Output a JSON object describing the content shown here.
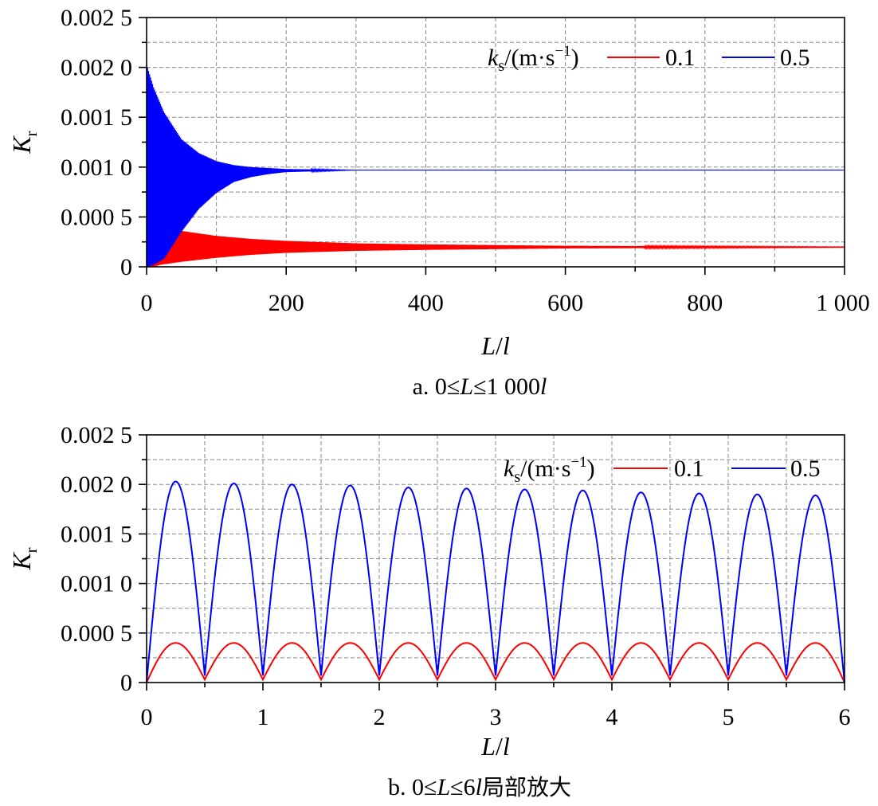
{
  "chart_data": [
    {
      "type": "line",
      "panel_caption": "a. 0≤L≤1 000l",
      "caption_parts": {
        "prefix": "a. 0≤",
        "var1": "L",
        "mid": "≤1 000",
        "var2": "l",
        "suffix": ""
      },
      "xlabel": {
        "var": "L",
        "sep": "/",
        "var2": "l"
      },
      "ylabel": {
        "base": "K",
        "sub": "r"
      },
      "xlim": [
        0,
        1000
      ],
      "ylim": [
        0,
        0.0025
      ],
      "xticks": [
        0,
        200,
        400,
        600,
        800,
        1000
      ],
      "xtick_labels": [
        "0",
        "200",
        "400",
        "600",
        "800",
        "1 000"
      ],
      "yticks": [
        0,
        0.0005,
        0.001,
        0.0015,
        0.002,
        0.0025
      ],
      "ytick_labels": [
        "0",
        "0.000 5",
        "0.001 0",
        "0.001 5",
        "0.002 0",
        "0.002 5"
      ],
      "grid": true,
      "legend": {
        "position": "top-right",
        "title_parts": {
          "base": "k",
          "sub": "s",
          "unit": "/(m·s",
          "sup": "−1",
          "close": ")"
        },
        "entries": [
          "0.1",
          "0.5"
        ]
      },
      "series": [
        {
          "name": "0.1",
          "color": "#ff0000",
          "description": "rapidly oscillating between 0 and an envelope; envelope rises to ~0.0004 near L/l≈30 then decays toward a steady value ~0.0002",
          "envelope_x": [
            0,
            5,
            10,
            20,
            30,
            50,
            100,
            150,
            200,
            300,
            400,
            600,
            800,
            1000
          ],
          "envelope_upper": [
            0,
            8e-05,
            0.00025,
            0.00036,
            0.00038,
            0.00036,
            0.00031,
            0.00028,
            0.00026,
            0.000235,
            0.000225,
            0.00021,
            0.000205,
            0.0002
          ],
          "envelope_lower": [
            0,
            0,
            0,
            2e-05,
            3e-05,
            5e-05,
            9e-05,
            0.00012,
            0.00014,
            0.00016,
            0.00017,
            0.000185,
            0.00019,
            0.000195
          ]
        },
        {
          "name": "0.5",
          "color": "#0000ff",
          "description": "rapidly oscillating; envelope starts ~0.00203 at L/l=0 and decays toward a steady value ~0.00097",
          "envelope_x": [
            0,
            10,
            25,
            50,
            75,
            100,
            125,
            150,
            175,
            200,
            250,
            300,
            1000
          ],
          "envelope_upper": [
            0.00203,
            0.0018,
            0.00155,
            0.00128,
            0.00114,
            0.00106,
            0.00102,
            0.001,
            0.00099,
            0.00098,
            0.000975,
            0.00097,
            0.00097
          ],
          "envelope_lower": [
            0,
            2e-05,
            8e-05,
            0.00035,
            0.00058,
            0.00074,
            0.00085,
            0.0009,
            0.00093,
            0.00095,
            0.00096,
            0.00097,
            0.00097
          ]
        }
      ]
    },
    {
      "type": "line",
      "panel_caption": "b. 0≤L≤6l局部放大",
      "caption_parts": {
        "prefix": "b. 0≤",
        "var1": "L",
        "mid": "≤6",
        "var2": "l",
        "suffix": "局部放大"
      },
      "xlabel": {
        "var": "L",
        "sep": "/",
        "var2": "l"
      },
      "ylabel": {
        "base": "K",
        "sub": "r"
      },
      "xlim": [
        0,
        6
      ],
      "ylim": [
        0,
        0.0025
      ],
      "xticks": [
        0,
        1,
        2,
        3,
        4,
        5,
        6
      ],
      "xtick_labels": [
        "0",
        "1",
        "2",
        "3",
        "4",
        "5",
        "6"
      ],
      "yticks": [
        0,
        0.0005,
        0.001,
        0.0015,
        0.002,
        0.0025
      ],
      "ytick_labels": [
        "0",
        "0.000 5",
        "0.001 0",
        "0.001 5",
        "0.002 0",
        "0.002 5"
      ],
      "grid": true,
      "legend": {
        "position": "top-right",
        "title_parts": {
          "base": "k",
          "sub": "s",
          "unit": "/(m·s",
          "sup": "−1",
          "close": ")"
        },
        "entries": [
          "0.1",
          "0.5"
        ]
      },
      "series": [
        {
          "name": "0.1",
          "color": "#ff0000",
          "description": "periodic arches with period 0.5, minima 0 at multiples of 0.5",
          "arch_period": 0.5,
          "arch_peaks": [
            0.0004,
            0.0004,
            0.0004,
            0.0004,
            0.0004,
            0.0004,
            0.0004,
            0.0004,
            0.0004,
            0.0004,
            0.0004,
            0.0004
          ],
          "arch_mins": [
            0,
            3e-05,
            3e-05,
            3e-05,
            3e-05,
            3e-05,
            3e-05,
            3e-05,
            3e-05,
            3e-05,
            3e-05,
            3e-05,
            0
          ]
        },
        {
          "name": "0.5",
          "color": "#0000ff",
          "description": "periodic arches with period 0.5, peaks slowly decaying",
          "arch_period": 0.5,
          "arch_peaks": [
            0.00203,
            0.00201,
            0.002,
            0.00199,
            0.00197,
            0.00196,
            0.00195,
            0.00194,
            0.00192,
            0.00191,
            0.0019,
            0.00189
          ],
          "arch_mins": [
            0,
            7e-05,
            7e-05,
            7e-05,
            7e-05,
            7e-05,
            7e-05,
            7e-05,
            7e-05,
            7e-05,
            7e-05,
            7e-05,
            0
          ]
        }
      ]
    }
  ]
}
